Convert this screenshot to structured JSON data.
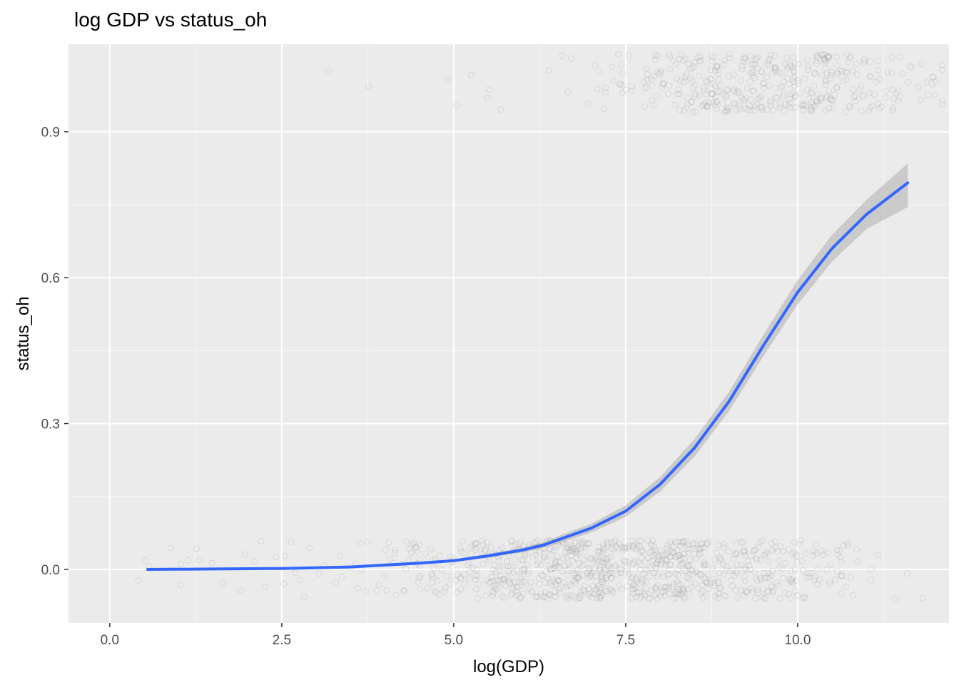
{
  "chart_data": {
    "type": "scatter",
    "title": "log GDP vs status_oh",
    "xlabel": "log(GDP)",
    "ylabel": "status_oh",
    "xlim": [
      -0.6,
      12.2
    ],
    "ylim": [
      -0.11,
      1.08
    ],
    "x_ticks": [
      0.0,
      2.5,
      5.0,
      7.5,
      10.0
    ],
    "x_tick_labels": [
      "0.0",
      "2.5",
      "5.0",
      "7.5",
      "10.0"
    ],
    "y_ticks": [
      0.0,
      0.3,
      0.6,
      0.9
    ],
    "y_tick_labels": [
      "0.0",
      "0.3",
      "0.6",
      "0.9"
    ],
    "grid": true,
    "jitter_height": 0.06,
    "series": [
      {
        "values": [
          0,
          1
        ],
        "points": "jittered binary outcomes (status_oh = 0 or 1), x ranging ~0.3 to 12.1, sparse below x=4, dense 5–10.5",
        "x_range": [
          0.3,
          12.1
        ],
        "outcome_levels": [
          0,
          1
        ],
        "point_color": "#999999",
        "point_opacity": 0.25
      },
      {
        "type": "line",
        "x": [
          0.55,
          1.5,
          2.5,
          3.5,
          4.0,
          4.5,
          5.0,
          5.5,
          6.0,
          6.3,
          6.6,
          7.0,
          7.5,
          8.0,
          8.5,
          9.0,
          9.5,
          10.0,
          10.5,
          11.0,
          11.6
        ],
        "y": [
          0.0,
          0.001,
          0.002,
          0.005,
          0.009,
          0.013,
          0.018,
          0.028,
          0.04,
          0.05,
          0.065,
          0.085,
          0.12,
          0.175,
          0.25,
          0.345,
          0.46,
          0.57,
          0.66,
          0.73,
          0.795
        ],
        "se_lower": [
          0.0,
          0.0,
          0.0,
          0.003,
          0.006,
          0.01,
          0.015,
          0.024,
          0.035,
          0.044,
          0.057,
          0.076,
          0.108,
          0.16,
          0.232,
          0.325,
          0.438,
          0.545,
          0.633,
          0.7,
          0.745
        ],
        "se_upper": [
          0.002,
          0.003,
          0.004,
          0.007,
          0.012,
          0.016,
          0.021,
          0.032,
          0.045,
          0.056,
          0.073,
          0.094,
          0.132,
          0.19,
          0.268,
          0.365,
          0.482,
          0.595,
          0.688,
          0.76,
          0.835
        ],
        "color": "#3366FF",
        "band_color": "#999999"
      }
    ],
    "colors": {
      "panel_background": "#EBEBEB",
      "grid_major": "#FFFFFF",
      "axis_text": "#4D4D4D"
    }
  }
}
